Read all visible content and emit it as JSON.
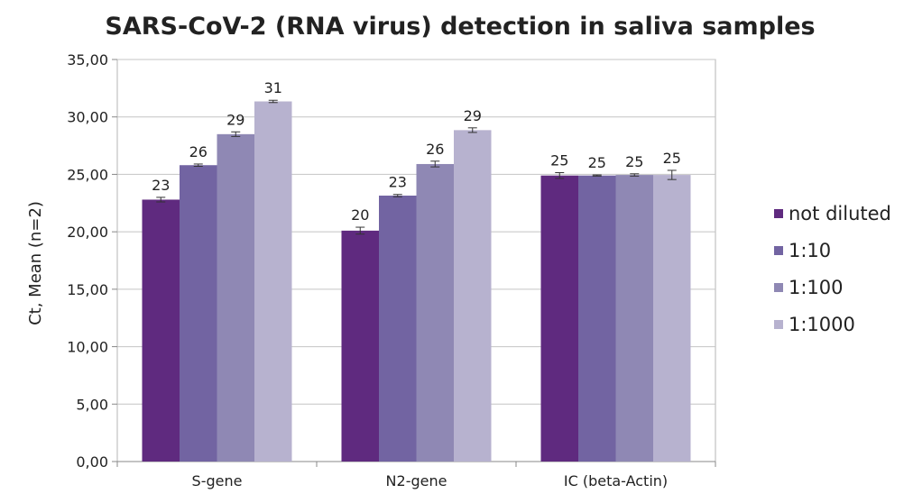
{
  "chart_data": {
    "type": "bar",
    "title": "SARS-CoV-2 (RNA virus) detection in saliva samples",
    "ylabel": "Ct, Mean (n=2)",
    "xlabel": "",
    "categories": [
      "S-gene",
      "N2-gene",
      "IC (beta-Actin)"
    ],
    "series": [
      {
        "name": "not diluted",
        "values": [
          22.8,
          20.1,
          24.9
        ],
        "errors": [
          0.2,
          0.3,
          0.25
        ],
        "labels": [
          "23",
          "20",
          "25"
        ],
        "color": "#5f2a7f"
      },
      {
        "name": "1:10",
        "values": [
          25.8,
          23.15,
          24.9
        ],
        "errors": [
          0.1,
          0.1,
          0.05
        ],
        "labels": [
          "26",
          "23",
          "25"
        ],
        "color": "#7264a2"
      },
      {
        "name": "1:100",
        "values": [
          28.5,
          25.9,
          24.95
        ],
        "errors": [
          0.2,
          0.25,
          0.1
        ],
        "labels": [
          "29",
          "26",
          "25"
        ],
        "color": "#8f88b4"
      },
      {
        "name": "1:1000",
        "values": [
          31.35,
          28.85,
          24.95
        ],
        "errors": [
          0.1,
          0.2,
          0.4
        ],
        "labels": [
          "31",
          "29",
          "25"
        ],
        "color": "#b7b2cf"
      }
    ],
    "ylim": [
      0,
      35
    ],
    "yticks": [
      "0,00",
      "5,00",
      "10,00",
      "15,00",
      "20,00",
      "25,00",
      "30,00",
      "35,00"
    ],
    "grid": true,
    "legend": "right"
  }
}
